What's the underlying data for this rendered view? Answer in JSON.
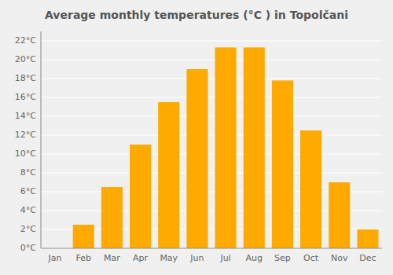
{
  "chart_data": {
    "type": "bar",
    "title": "Average monthly temperatures (°C ) in Topolčani",
    "categories": [
      "Jan",
      "Feb",
      "Mar",
      "Apr",
      "May",
      "Jun",
      "Jul",
      "Aug",
      "Sep",
      "Oct",
      "Nov",
      "Dec"
    ],
    "values": [
      0,
      2.5,
      6.5,
      11.0,
      15.5,
      19.0,
      21.3,
      21.3,
      17.8,
      12.5,
      7.0,
      2.0
    ],
    "color": "#FFAA00",
    "ylim": [
      0,
      23
    ],
    "yticks": [
      {
        "value": 0,
        "label": "0°C"
      },
      {
        "value": 2,
        "label": "2°C"
      },
      {
        "value": 4,
        "label": "4°C"
      },
      {
        "value": 6,
        "label": "6°C"
      },
      {
        "value": 8,
        "label": "8°C"
      },
      {
        "value": 10,
        "label": "10°C"
      },
      {
        "value": 12,
        "label": "12°C"
      },
      {
        "value": 14,
        "label": "14°C"
      },
      {
        "value": 16,
        "label": "16°C"
      },
      {
        "value": 18,
        "label": "18°C"
      },
      {
        "value": 20,
        "label": "20°C"
      },
      {
        "value": 22,
        "label": "22°C"
      }
    ],
    "grid": true
  }
}
